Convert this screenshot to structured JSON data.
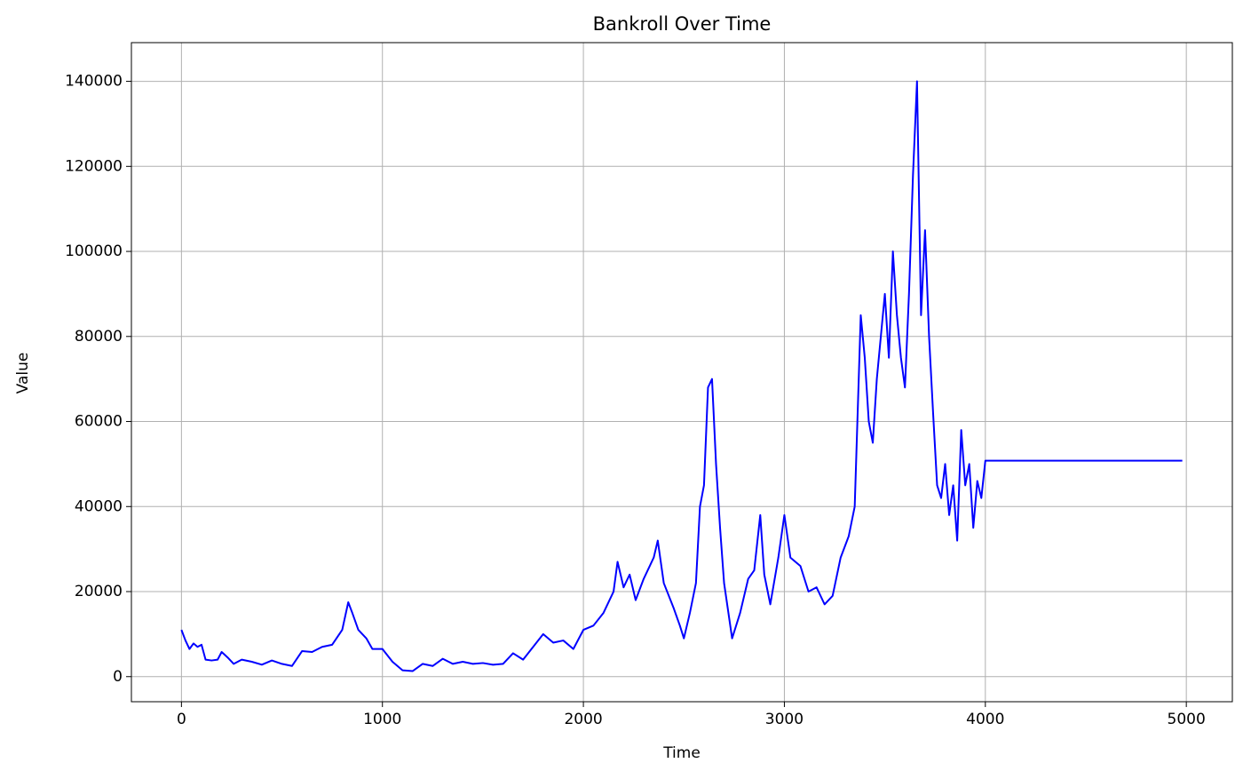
{
  "chart_data": {
    "type": "line",
    "title": "Bankroll Over Time",
    "x_label": "Time",
    "y_label": "Value",
    "x": [
      0,
      20,
      40,
      60,
      80,
      100,
      120,
      150,
      180,
      200,
      230,
      260,
      300,
      350,
      400,
      450,
      500,
      550,
      600,
      650,
      700,
      750,
      800,
      830,
      850,
      880,
      920,
      950,
      1000,
      1050,
      1100,
      1150,
      1200,
      1250,
      1300,
      1350,
      1400,
      1450,
      1500,
      1550,
      1600,
      1650,
      1700,
      1750,
      1800,
      1850,
      1900,
      1950,
      2000,
      2050,
      2100,
      2150,
      2170,
      2200,
      2230,
      2260,
      2300,
      2350,
      2370,
      2400,
      2450,
      2480,
      2500,
      2530,
      2560,
      2580,
      2600,
      2620,
      2640,
      2660,
      2680,
      2700,
      2740,
      2780,
      2820,
      2850,
      2880,
      2900,
      2930,
      2970,
      3000,
      3030,
      3080,
      3120,
      3160,
      3200,
      3240,
      3280,
      3320,
      3350,
      3380,
      3400,
      3420,
      3440,
      3460,
      3480,
      3500,
      3520,
      3540,
      3560,
      3580,
      3600,
      3620,
      3640,
      3660,
      3680,
      3700,
      3720,
      3740,
      3760,
      3780,
      3800,
      3820,
      3840,
      3860,
      3880,
      3900,
      3920,
      3940,
      3960,
      3980,
      4000,
      4980
    ],
    "series": [
      {
        "name": "Bankroll",
        "color": "#0000ff",
        "values": [
          11000,
          8500,
          6500,
          7800,
          7000,
          7500,
          4000,
          3800,
          4000,
          5800,
          4500,
          3000,
          4000,
          3500,
          2800,
          3800,
          3000,
          2500,
          6000,
          5800,
          7000,
          7500,
          11000,
          17500,
          15000,
          11000,
          9000,
          6500,
          6500,
          3500,
          1500,
          1300,
          3000,
          2500,
          4200,
          3000,
          3500,
          3000,
          3200,
          2800,
          3000,
          5500,
          4000,
          7000,
          10000,
          8000,
          8500,
          6500,
          11000,
          12000,
          15000,
          20000,
          27000,
          21000,
          24000,
          18000,
          23000,
          28000,
          32000,
          22000,
          16000,
          12000,
          9000,
          15000,
          22000,
          40000,
          45000,
          68000,
          70000,
          50000,
          35000,
          22000,
          9000,
          15000,
          23000,
          25000,
          38000,
          24000,
          17000,
          28000,
          38000,
          28000,
          26000,
          20000,
          21000,
          17000,
          19000,
          28000,
          33000,
          40000,
          85000,
          75000,
          60000,
          55000,
          70000,
          80000,
          90000,
          75000,
          100000,
          85000,
          75000,
          68000,
          90000,
          118000,
          140000,
          85000,
          105000,
          80000,
          62000,
          45000,
          42000,
          50000,
          38000,
          45000,
          32000,
          58000,
          45000,
          50000,
          35000,
          46000,
          42000,
          50800,
          50800
        ]
      }
    ],
    "xlim": [
      -249,
      5229
    ],
    "ylim": [
      -5900,
      149100
    ],
    "xticks": [
      0,
      1000,
      2000,
      3000,
      4000,
      5000
    ],
    "yticks": [
      0,
      20000,
      40000,
      60000,
      80000,
      100000,
      120000,
      140000
    ],
    "grid": true
  }
}
